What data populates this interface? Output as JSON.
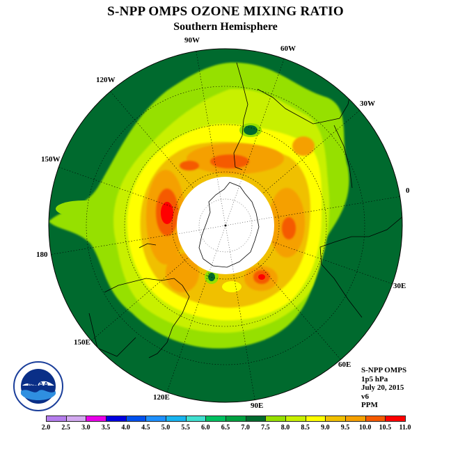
{
  "title": "S-NPP OMPS OZONE MIXING RATIO",
  "subtitle": "Southern Hemisphere",
  "longitude_labels": [
    "90W",
    "60W",
    "30W",
    "120W",
    "150W",
    "0",
    "180",
    "30E",
    "150E",
    "60E",
    "120E",
    "90E"
  ],
  "info": {
    "instrument": "S-NPP OMPS",
    "level": "1p5 hPa",
    "date": "July 20, 2015",
    "version": "v6",
    "units": "PPM"
  },
  "logo_text": "NOAA",
  "colorbar": {
    "ticks": [
      "2.0",
      "2.5",
      "3.0",
      "3.5",
      "4.0",
      "4.5",
      "5.0",
      "5.5",
      "6.0",
      "6.5",
      "7.0",
      "7.5",
      "8.0",
      "8.5",
      "9.0",
      "9.5",
      "10.0",
      "10.5",
      "11.0"
    ],
    "colors": [
      "#b57ded",
      "#d3a9f0",
      "#e800e8",
      "#0000e0",
      "#0050ee",
      "#1e90ff",
      "#18b4f0",
      "#40e0d0",
      "#00c060",
      "#00a040",
      "#006a2e",
      "#96e000",
      "#c8f000",
      "#ffff00",
      "#f0c000",
      "#f5a000",
      "#f55a00",
      "#ff0000",
      "#8b5a3c"
    ]
  }
}
